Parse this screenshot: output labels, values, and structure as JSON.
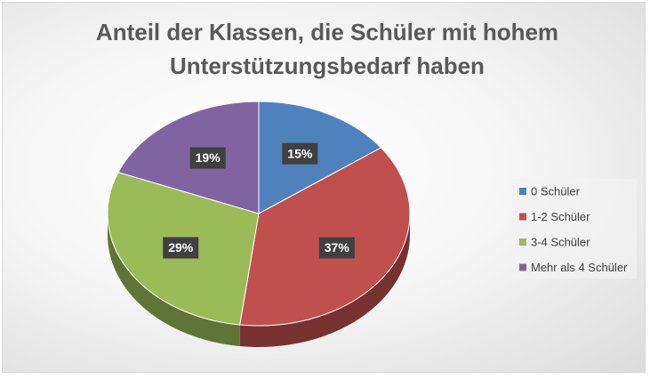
{
  "chart_data": {
    "type": "pie3d",
    "title": "Anteil der Klassen, die Schüler mit hohem Unterstützungsbedarf haben",
    "categories": [
      "0 Schüler",
      "1-2 Schüler",
      "3-4 Schüler",
      "Mehr als 4 Schüler"
    ],
    "values": [
      15,
      37,
      29,
      19
    ],
    "value_labels": [
      "15%",
      "37%",
      "29%",
      "19%"
    ],
    "colors": [
      "#4f81bd",
      "#c0504d",
      "#9bbb59",
      "#8064a2"
    ],
    "legend": "right"
  }
}
